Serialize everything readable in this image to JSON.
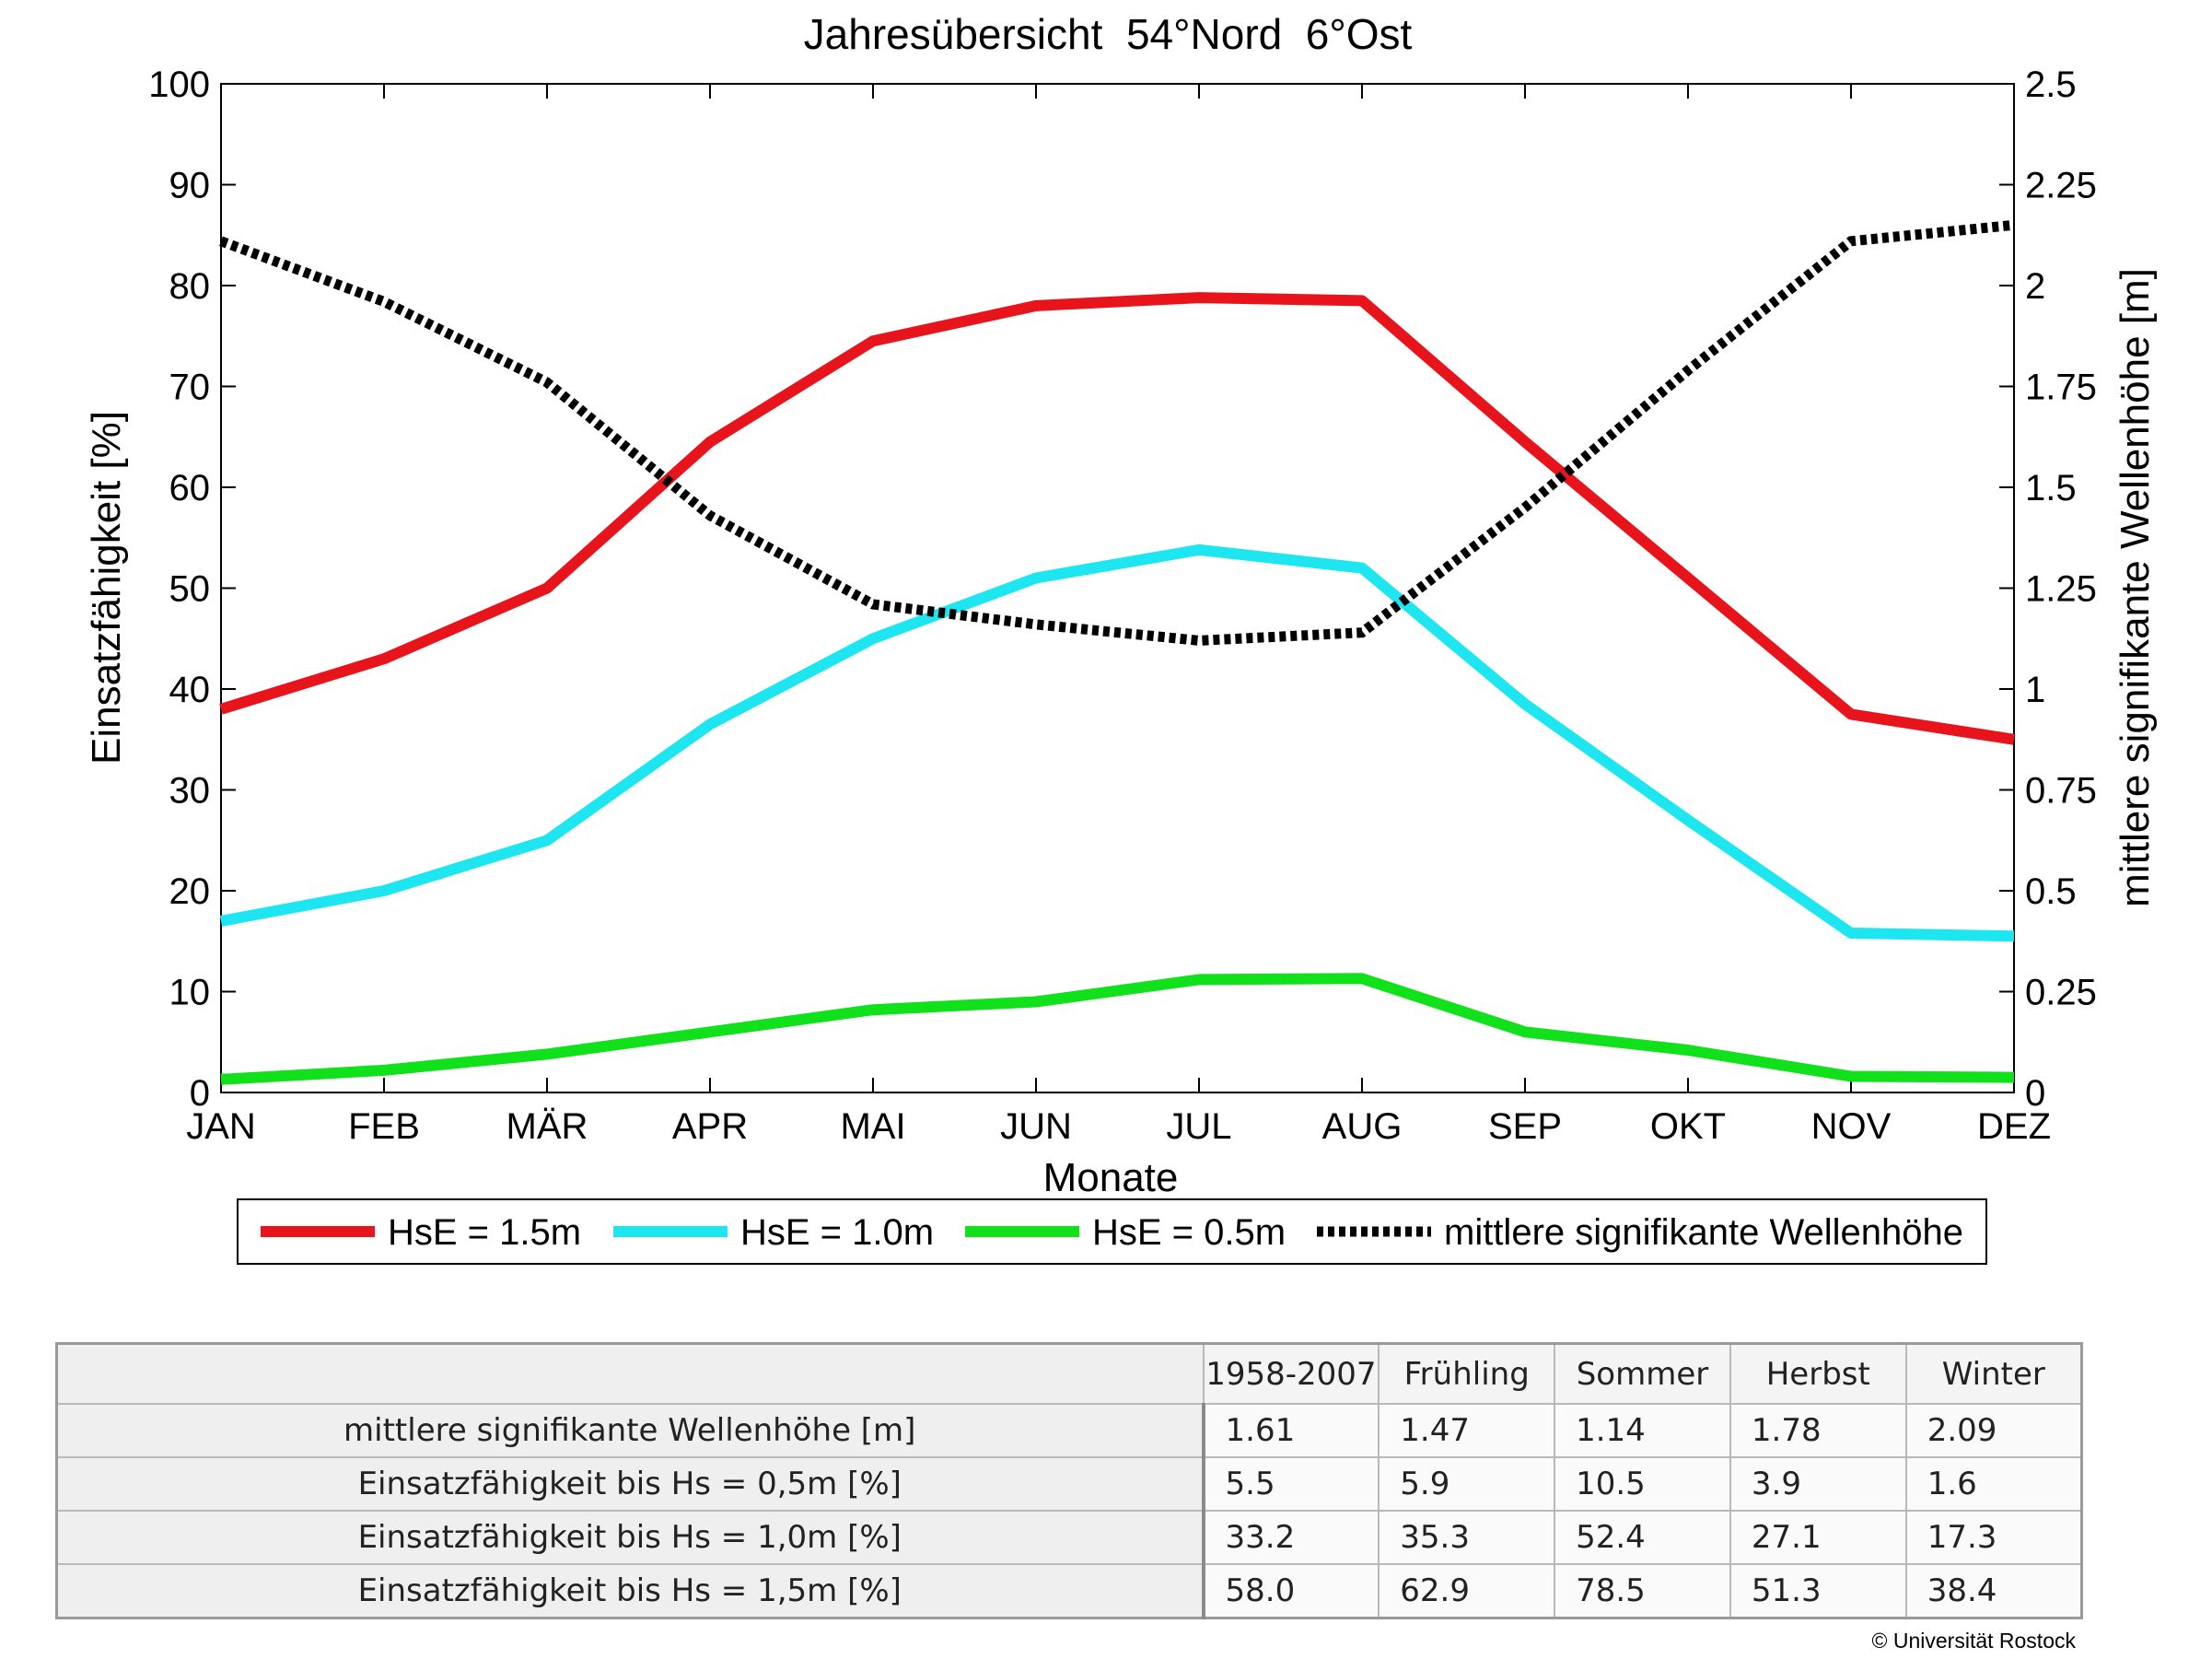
{
  "chart_data": {
    "type": "line",
    "title": "Jahresübersicht  54°Nord  6°Ost",
    "xlabel": "Monate",
    "ylabel": "Einsatzfähigkeit [%]",
    "ylabel_right": "mittlere signifikante Wellenhöhe [m]",
    "categories": [
      "JAN",
      "FEB",
      "MÄR",
      "APR",
      "MAI",
      "JUN",
      "JUL",
      "AUG",
      "SEP",
      "OKT",
      "NOV",
      "DEZ"
    ],
    "ylim": [
      0,
      100
    ],
    "yticks": [
      "0",
      "10",
      "20",
      "30",
      "40",
      "50",
      "60",
      "70",
      "80",
      "90",
      "100"
    ],
    "ylim_right": [
      0,
      2.5
    ],
    "yticks_right": [
      "0",
      "0.25",
      "0.5",
      "0.75",
      "1",
      "1.25",
      "1.5",
      "1.75",
      "2",
      "2.25",
      "2.5"
    ],
    "legend_position": "bottom",
    "series": [
      {
        "name": "HsE = 1.5m",
        "axis": "left",
        "color": "#e8141c",
        "style": "solid",
        "values": [
          38,
          43,
          50,
          64.5,
          74.5,
          78,
          78.8,
          78.5,
          64.5,
          51,
          37.5,
          35
        ]
      },
      {
        "name": "HsE = 1.0m",
        "axis": "left",
        "color": "#1ee6f0",
        "style": "solid",
        "values": [
          17,
          20,
          25,
          36.5,
          45,
          51,
          53.8,
          52,
          38.5,
          27,
          15.8,
          15.5
        ]
      },
      {
        "name": "HsE = 0.5m",
        "axis": "left",
        "color": "#11e11b",
        "style": "solid",
        "values": [
          1.3,
          2.2,
          3.8,
          6,
          8.2,
          9,
          11.2,
          11.3,
          6,
          4.2,
          1.6,
          1.5
        ]
      },
      {
        "name": "mittlere signifikante Wellenhöhe",
        "axis": "right",
        "color": "#000000",
        "style": "dotted",
        "values": [
          2.11,
          1.96,
          1.76,
          1.43,
          1.21,
          1.16,
          1.12,
          1.14,
          1.45,
          1.79,
          2.11,
          2.15
        ]
      }
    ]
  },
  "table": {
    "headers": [
      "1958-2007",
      "Frühling",
      "Sommer",
      "Herbst",
      "Winter"
    ],
    "rows": [
      {
        "label": "mittlere signifikante Wellenhöhe [m]",
        "values": [
          "1.61",
          "1.47",
          "1.14",
          "1.78",
          "2.09"
        ]
      },
      {
        "label": "Einsatzfähigkeit bis Hs = 0,5m [%]",
        "values": [
          "5.5",
          "5.9",
          "10.5",
          "3.9",
          "1.6"
        ]
      },
      {
        "label": "Einsatzfähigkeit bis Hs = 1,0m [%]",
        "values": [
          "33.2",
          "35.3",
          "52.4",
          "27.1",
          "17.3"
        ]
      },
      {
        "label": "Einsatzfähigkeit bis Hs = 1,5m [%]",
        "values": [
          "58.0",
          "62.9",
          "78.5",
          "51.3",
          "38.4"
        ]
      }
    ]
  },
  "copyright": "© Universität Rostock"
}
